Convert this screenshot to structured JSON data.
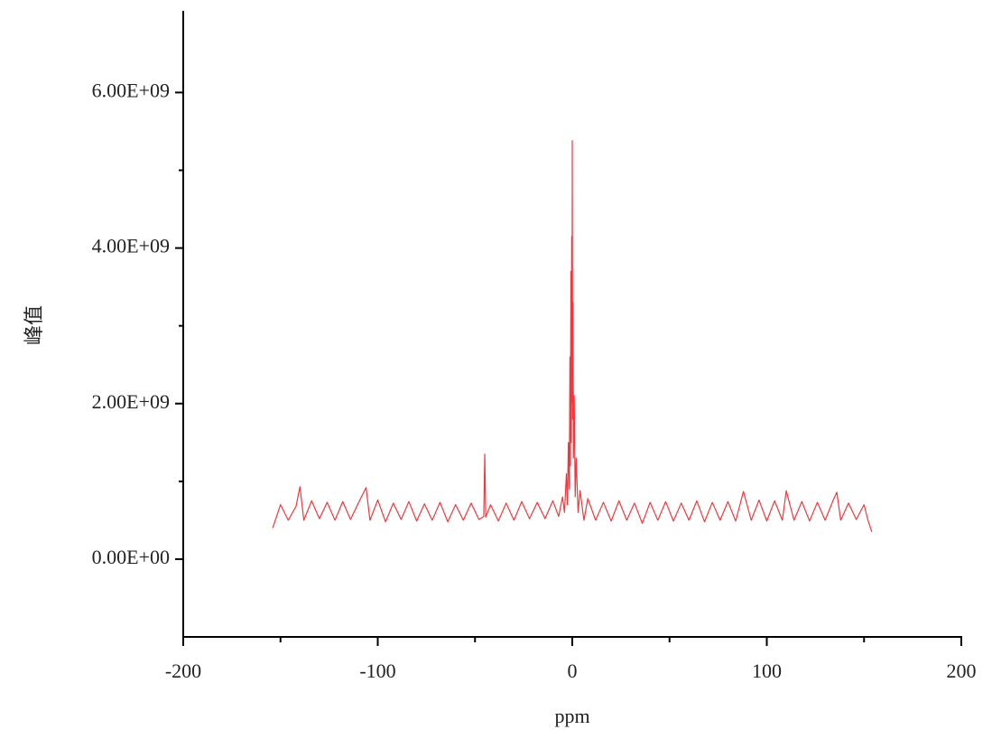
{
  "chart_data": {
    "type": "line",
    "xlabel": "ppm",
    "ylabel": "峰值",
    "xlim": [
      -200,
      200
    ],
    "xticks": [
      -200,
      -100,
      0,
      100,
      200
    ],
    "xminorticks": [
      -150,
      -50,
      50,
      150
    ],
    "ylim": [
      -1000000000.0,
      7050000000.0
    ],
    "yticks": [
      {
        "value": 0,
        "label": "0.00E+00"
      },
      {
        "value": 2000000000.0,
        "label": "2.00E+09"
      },
      {
        "value": 4000000000.0,
        "label": "4.00E+09"
      },
      {
        "value": 6000000000.0,
        "label": "6.00E+09"
      }
    ],
    "yminorticks": [
      1000000000.0,
      3000000000.0,
      5000000000.0
    ],
    "x": [
      -154,
      -152,
      -150,
      -146,
      -142,
      -140,
      -138,
      -134,
      -130,
      -126,
      -122,
      -118,
      -114,
      -110,
      -106,
      -104,
      -100,
      -96,
      -92,
      -88,
      -84,
      -80,
      -76,
      -72,
      -68,
      -64,
      -60,
      -56,
      -52,
      -48,
      -45.5,
      -45,
      -44.5,
      -42,
      -38,
      -34,
      -30,
      -26,
      -22,
      -18,
      -14,
      -10,
      -7,
      -5,
      -4,
      -3,
      -2.5,
      -2,
      -1.5,
      -1.2,
      -1,
      -0.7,
      -0.5,
      -0.3,
      -0.1,
      0,
      0.2,
      0.4,
      0.6,
      1,
      1.5,
      2,
      3,
      4,
      6,
      8,
      12,
      16,
      20,
      24,
      28,
      32,
      36,
      40,
      44,
      48,
      52,
      56,
      60,
      64,
      68,
      72,
      76,
      80,
      84,
      88,
      92,
      96,
      100,
      104,
      108,
      110,
      114,
      118,
      122,
      126,
      130,
      134,
      136,
      138,
      142,
      146,
      150,
      152,
      154
    ],
    "series": [
      {
        "color": "#f0383e",
        "values": [
          400000000.0,
          550000000.0,
          700000000.0,
          500000000.0,
          680000000.0,
          930000000.0,
          500000000.0,
          750000000.0,
          520000000.0,
          730000000.0,
          500000000.0,
          740000000.0,
          510000000.0,
          720000000.0,
          920000000.0,
          500000000.0,
          760000000.0,
          480000000.0,
          720000000.0,
          510000000.0,
          740000000.0,
          490000000.0,
          710000000.0,
          500000000.0,
          730000000.0,
          480000000.0,
          700000000.0,
          500000000.0,
          720000000.0,
          510000000.0,
          550000000.0,
          1350000000.0,
          540000000.0,
          700000000.0,
          490000000.0,
          720000000.0,
          500000000.0,
          740000000.0,
          520000000.0,
          730000000.0,
          520000000.0,
          750000000.0,
          550000000.0,
          800000000.0,
          600000000.0,
          1100000000.0,
          700000000.0,
          1500000000.0,
          900000000.0,
          2600000000.0,
          1200000000.0,
          3700000000.0,
          1500000000.0,
          4150000000.0,
          2000000000.0,
          5380000000.0,
          1800000000.0,
          3300000000.0,
          1300000000.0,
          2100000000.0,
          800000000.0,
          1300000000.0,
          600000000.0,
          880000000.0,
          500000000.0,
          780000000.0,
          500000000.0,
          730000000.0,
          490000000.0,
          750000000.0,
          500000000.0,
          720000000.0,
          460000000.0,
          730000000.0,
          500000000.0,
          740000000.0,
          490000000.0,
          720000000.0,
          500000000.0,
          750000000.0,
          480000000.0,
          730000000.0,
          500000000.0,
          740000000.0,
          490000000.0,
          870000000.0,
          500000000.0,
          760000000.0,
          490000000.0,
          750000000.0,
          500000000.0,
          880000000.0,
          500000000.0,
          740000000.0,
          490000000.0,
          730000000.0,
          500000000.0,
          750000000.0,
          860000000.0,
          500000000.0,
          720000000.0,
          510000000.0,
          700000000.0,
          500000000.0,
          350000000.0
        ]
      }
    ]
  }
}
